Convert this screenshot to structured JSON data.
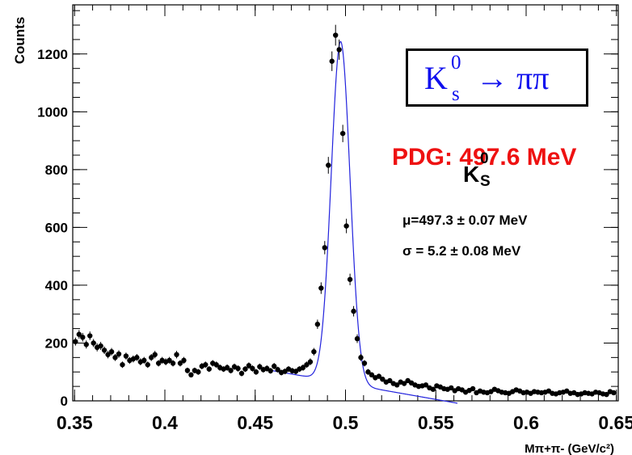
{
  "chart_data": {
    "type": "scatter",
    "xlabel": "Mπ+π- (GeV/c²)",
    "ylabel": "Counts",
    "xlim": [
      0.349,
      0.651
    ],
    "ylim": [
      0,
      1370
    ],
    "x_ticks": [
      "0.35",
      "0.4",
      "0.45",
      "0.5",
      "0.55",
      "0.6",
      "0.65"
    ],
    "x_tick_values": [
      0.35,
      0.4,
      0.45,
      0.5,
      0.55,
      0.6,
      0.65
    ],
    "y_ticks": [
      "0",
      "200",
      "400",
      "600",
      "800",
      "1000",
      "1200"
    ],
    "y_tick_values": [
      0,
      200,
      400,
      600,
      800,
      1000,
      1200
    ],
    "grid": false,
    "marker_color": "#000000",
    "fit_color": "#2222dd",
    "series": [
      {
        "x": [
          0.3505,
          0.3525,
          0.3545,
          0.3565,
          0.3585,
          0.3605,
          0.3625,
          0.3645,
          0.3665,
          0.3685,
          0.3705,
          0.3725,
          0.3745,
          0.3765,
          0.3785,
          0.3805,
          0.3825,
          0.3845,
          0.3865,
          0.3885,
          0.3905,
          0.3925,
          0.3945,
          0.3965,
          0.3985,
          0.4005,
          0.4025,
          0.4045,
          0.4065,
          0.4085,
          0.4105,
          0.4125,
          0.4145,
          0.4165,
          0.4185,
          0.4205,
          0.4225,
          0.4245,
          0.4265,
          0.4285,
          0.4305,
          0.4325,
          0.4345,
          0.4365,
          0.4385,
          0.4405,
          0.4425,
          0.4445,
          0.4465,
          0.4485,
          0.4505,
          0.4525,
          0.4545,
          0.4565,
          0.4585,
          0.4605,
          0.4625,
          0.4645,
          0.4665,
          0.4685,
          0.4705,
          0.4725,
          0.4745,
          0.4765,
          0.4785,
          0.4805,
          0.4825,
          0.4845,
          0.4865,
          0.4885,
          0.4905,
          0.4925,
          0.4945,
          0.4965,
          0.4985,
          0.5005,
          0.5025,
          0.5045,
          0.5065,
          0.5085,
          0.5105,
          0.5125,
          0.5145,
          0.5165,
          0.5185,
          0.5205,
          0.5225,
          0.5245,
          0.5265,
          0.5285,
          0.5305,
          0.5325,
          0.5345,
          0.5365,
          0.5385,
          0.5405,
          0.5425,
          0.5445,
          0.5465,
          0.5485,
          0.5505,
          0.5525,
          0.5545,
          0.5565,
          0.5585,
          0.5605,
          0.5625,
          0.5645,
          0.5665,
          0.5685,
          0.5705,
          0.5725,
          0.5745,
          0.5765,
          0.5785,
          0.5805,
          0.5825,
          0.5845,
          0.5865,
          0.5885,
          0.5905,
          0.5925,
          0.5945,
          0.5965,
          0.5985,
          0.6005,
          0.6025,
          0.6045,
          0.6065,
          0.6085,
          0.6105,
          0.6125,
          0.6145,
          0.6165,
          0.6185,
          0.6205,
          0.6225,
          0.6245,
          0.6265,
          0.6285,
          0.6305,
          0.6325,
          0.6345,
          0.6365,
          0.6385,
          0.6405,
          0.6425,
          0.6445,
          0.6465,
          0.6485
        ],
        "y": [
          205,
          230,
          220,
          195,
          225,
          200,
          185,
          190,
          175,
          160,
          170,
          150,
          162,
          125,
          155,
          140,
          145,
          150,
          135,
          140,
          125,
          150,
          160,
          130,
          140,
          135,
          140,
          130,
          160,
          130,
          140,
          105,
          90,
          105,
          100,
          120,
          125,
          110,
          130,
          125,
          115,
          110,
          115,
          105,
          118,
          112,
          95,
          110,
          122,
          112,
          100,
          118,
          108,
          112,
          104,
          120,
          108,
          98,
          102,
          110,
          104,
          102,
          110,
          115,
          125,
          135,
          170,
          265,
          390,
          530,
          815,
          1175,
          1265,
          1215,
          925,
          605,
          420,
          310,
          215,
          150,
          130,
          100,
          90,
          80,
          85,
          75,
          65,
          70,
          60,
          55,
          65,
          60,
          70,
          62,
          55,
          50,
          52,
          55,
          45,
          40,
          52,
          48,
          42,
          40,
          45,
          35,
          42,
          38,
          30,
          36,
          42,
          28,
          34,
          30,
          28,
          32,
          40,
          35,
          30,
          28,
          26,
          32,
          38,
          34,
          28,
          30,
          26,
          32,
          30,
          28,
          30,
          34,
          26,
          24,
          28,
          30,
          34,
          26,
          28,
          22,
          24,
          28,
          26,
          24,
          30,
          28,
          24,
          22,
          32,
          28
        ],
        "err": [
          14,
          15,
          15,
          14,
          15,
          14,
          14,
          14,
          13,
          13,
          13,
          12,
          13,
          11,
          12,
          12,
          12,
          12,
          12,
          12,
          11,
          12,
          13,
          11,
          12,
          12,
          12,
          11,
          13,
          11,
          12,
          10,
          9,
          10,
          10,
          11,
          11,
          10,
          11,
          11,
          11,
          10,
          11,
          10,
          11,
          11,
          10,
          10,
          11,
          11,
          10,
          11,
          10,
          11,
          10,
          11,
          10,
          10,
          10,
          10,
          10,
          10,
          10,
          11,
          11,
          12,
          13,
          16,
          20,
          23,
          29,
          34,
          36,
          35,
          30,
          25,
          20,
          18,
          15,
          12,
          11,
          10,
          9,
          9,
          9,
          9,
          8,
          8,
          8,
          7,
          8,
          8,
          8,
          8,
          7,
          7,
          7,
          7,
          7,
          6,
          7,
          7,
          6,
          6,
          7,
          6,
          6,
          6,
          5,
          6,
          6,
          5,
          6,
          5,
          5,
          6,
          6,
          6,
          5,
          5,
          5,
          6,
          6,
          6,
          5,
          5,
          5,
          6,
          5,
          5,
          5,
          6,
          5,
          5,
          5,
          5,
          6,
          5,
          5,
          5,
          5,
          5,
          5,
          5,
          5,
          5,
          5,
          5,
          6,
          5
        ]
      }
    ],
    "fit": {
      "type": "gaussian plus linear background",
      "range": [
        0.452,
        0.562
      ],
      "mean": 0.4973,
      "sigma": 0.0052,
      "peak": 1180,
      "background_at_045": 115,
      "background_slope": -1100
    }
  },
  "annotations": {
    "decay_k": "K",
    "decay_sup": "0",
    "decay_sub": "s",
    "decay_rest": " → ππ",
    "pdg": "PDG: 497.6 MeV",
    "ks_k": "K",
    "ks_sup": "0",
    "ks_sub": "S",
    "mu": "μ=497.3 ± 0.07 MeV",
    "sigma": "σ = 5.2 ± 0.08 MeV"
  },
  "colors": {
    "decay_text": "#1010ee",
    "pdg_text": "#ee1111",
    "fit_line": "#2222dd"
  }
}
